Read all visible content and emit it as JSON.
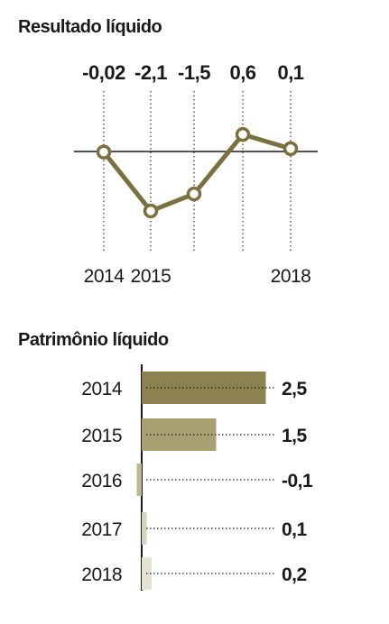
{
  "chart_data": [
    {
      "type": "line",
      "title": "Resultado líquido",
      "x": [
        2014,
        2015,
        2016,
        2017,
        2018
      ],
      "x_tick_labels": [
        "2014",
        "2015",
        "",
        "",
        "2018"
      ],
      "value_labels": [
        "-0,02",
        "-2,1",
        "-1,5",
        "0,6",
        "0,1"
      ],
      "values": [
        -0.02,
        -2.1,
        -1.5,
        0.6,
        0.1
      ],
      "ylim": [
        -2.5,
        1.0
      ],
      "color": "#7a7040"
    },
    {
      "type": "bar",
      "orientation": "horizontal",
      "title": "Patrimônio líquido",
      "categories": [
        "2014",
        "2015",
        "2016",
        "2017",
        "2018"
      ],
      "value_labels": [
        "2,5",
        "1,5",
        "-0,1",
        "0,1",
        "0,2"
      ],
      "values": [
        2.5,
        1.5,
        -0.1,
        0.1,
        0.2
      ],
      "colors": [
        "#8c8250",
        "#a8a070",
        "#bfb898",
        "#d8d3c0",
        "#e6e2d4"
      ]
    }
  ]
}
